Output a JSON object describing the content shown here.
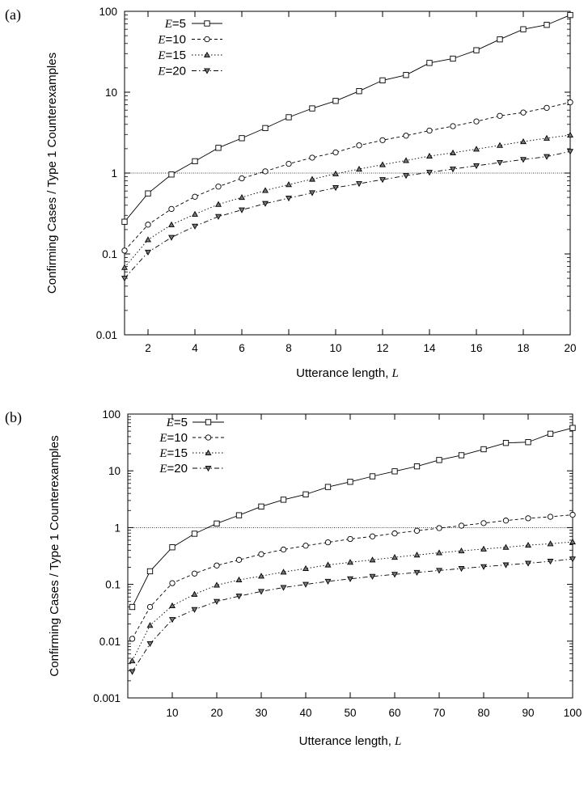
{
  "chart_data": [
    {
      "panel_label": "(a)",
      "type": "line",
      "xlabel": "Utterance length, ",
      "xlabel_var": "L",
      "ylabel": "Confirming Cases / Type 1 Counterexamples",
      "x_scale": "linear",
      "y_scale": "log",
      "xlim": [
        1,
        20
      ],
      "ylim": [
        0.01,
        100
      ],
      "x_ticks": [
        2,
        4,
        6,
        8,
        10,
        12,
        14,
        16,
        18,
        20
      ],
      "x_tick_labels": [
        "2",
        "4",
        "6",
        "8",
        "10",
        "12",
        "14",
        "16",
        "18",
        "20"
      ],
      "y_ticks": [
        0.01,
        0.1,
        1,
        10,
        100
      ],
      "y_tick_labels": [
        "0.01",
        "0.1",
        "1",
        "10",
        "100"
      ],
      "reference_line": 1,
      "legend_position": "top-left",
      "series": [
        {
          "legend_var": "E",
          "legend_value": "=5",
          "marker": "square",
          "dash": "solid",
          "x": [
            1,
            2,
            3,
            4,
            5,
            6,
            7,
            8,
            9,
            10,
            11,
            12,
            13,
            14,
            15,
            16,
            17,
            18,
            19,
            20
          ],
          "values": [
            0.25,
            0.56,
            0.96,
            1.4,
            2.05,
            2.7,
            3.6,
            4.9,
            6.3,
            7.8,
            10.3,
            14.0,
            16.3,
            23,
            26,
            33,
            45,
            60,
            68,
            90
          ]
        },
        {
          "legend_var": "E",
          "legend_value": "=10",
          "marker": "circle",
          "dash": "dashed",
          "x": [
            1,
            2,
            3,
            4,
            5,
            6,
            7,
            8,
            9,
            10,
            11,
            12,
            13,
            14,
            15,
            16,
            17,
            18,
            19,
            20
          ],
          "values": [
            0.11,
            0.23,
            0.36,
            0.51,
            0.68,
            0.86,
            1.05,
            1.3,
            1.55,
            1.8,
            2.2,
            2.55,
            2.9,
            3.35,
            3.8,
            4.35,
            5.1,
            5.6,
            6.4,
            7.5
          ]
        },
        {
          "legend_var": "E",
          "legend_value": "=15",
          "marker": "triangle-up",
          "dash": "dotted",
          "x": [
            1,
            2,
            3,
            4,
            5,
            6,
            7,
            8,
            9,
            10,
            11,
            12,
            13,
            14,
            15,
            16,
            17,
            18,
            19,
            20
          ],
          "values": [
            0.068,
            0.15,
            0.23,
            0.31,
            0.41,
            0.5,
            0.61,
            0.72,
            0.84,
            0.98,
            1.12,
            1.27,
            1.43,
            1.62,
            1.78,
            1.98,
            2.2,
            2.45,
            2.7,
            2.95
          ]
        },
        {
          "legend_var": "E",
          "legend_value": "=20",
          "marker": "triangle-down",
          "dash": "dashdot",
          "x": [
            1,
            2,
            3,
            4,
            5,
            6,
            7,
            8,
            9,
            10,
            11,
            12,
            13,
            14,
            15,
            16,
            17,
            18,
            19,
            20
          ],
          "values": [
            0.05,
            0.105,
            0.16,
            0.22,
            0.29,
            0.35,
            0.42,
            0.49,
            0.57,
            0.66,
            0.74,
            0.83,
            0.93,
            1.02,
            1.12,
            1.23,
            1.35,
            1.47,
            1.6,
            1.85
          ]
        }
      ]
    },
    {
      "panel_label": "(b)",
      "type": "line",
      "xlabel": "Utterance length, ",
      "xlabel_var": "L",
      "ylabel": "Confirming Cases / Type 1 Counterexamples",
      "x_scale": "linear",
      "y_scale": "log",
      "xlim": [
        0,
        100
      ],
      "ylim": [
        0.001,
        100
      ],
      "x_ticks": [
        10,
        20,
        30,
        40,
        50,
        60,
        70,
        80,
        90,
        100
      ],
      "x_tick_labels": [
        "10",
        "20",
        "30",
        "40",
        "50",
        "60",
        "70",
        "80",
        "90",
        "100"
      ],
      "y_ticks": [
        0.001,
        0.01,
        0.1,
        1,
        10,
        100
      ],
      "y_tick_labels": [
        "0.001",
        "0.01",
        "0.1",
        "1",
        "10",
        "100"
      ],
      "reference_line": 1,
      "legend_position": "top-left",
      "series": [
        {
          "legend_var": "E",
          "legend_value": "=5",
          "marker": "square",
          "dash": "solid",
          "x": [
            1,
            5,
            10,
            15,
            20,
            25,
            30,
            35,
            40,
            45,
            50,
            55,
            60,
            65,
            70,
            75,
            80,
            85,
            90,
            95,
            100
          ],
          "values": [
            0.04,
            0.17,
            0.45,
            0.78,
            1.18,
            1.65,
            2.35,
            3.1,
            3.85,
            5.2,
            6.4,
            8.0,
            9.8,
            12.0,
            15.5,
            18.8,
            24,
            31,
            32,
            45,
            57
          ]
        },
        {
          "legend_var": "E",
          "legend_value": "=10",
          "marker": "circle",
          "dash": "dashed",
          "x": [
            1,
            5,
            10,
            15,
            20,
            25,
            30,
            35,
            40,
            45,
            50,
            55,
            60,
            65,
            70,
            75,
            80,
            85,
            90,
            95,
            100
          ],
          "values": [
            0.011,
            0.04,
            0.105,
            0.155,
            0.215,
            0.27,
            0.34,
            0.41,
            0.48,
            0.55,
            0.63,
            0.7,
            0.79,
            0.88,
            0.98,
            1.08,
            1.2,
            1.33,
            1.46,
            1.55,
            1.68
          ]
        },
        {
          "legend_var": "E",
          "legend_value": "=15",
          "marker": "triangle-up",
          "dash": "dotted",
          "x": [
            1,
            5,
            10,
            15,
            20,
            25,
            30,
            35,
            40,
            45,
            50,
            55,
            60,
            65,
            70,
            75,
            80,
            85,
            90,
            95,
            100
          ],
          "values": [
            0.0045,
            0.019,
            0.042,
            0.067,
            0.097,
            0.12,
            0.14,
            0.165,
            0.19,
            0.22,
            0.245,
            0.27,
            0.3,
            0.33,
            0.36,
            0.39,
            0.42,
            0.45,
            0.49,
            0.52,
            0.56
          ]
        },
        {
          "legend_var": "E",
          "legend_value": "=20",
          "marker": "triangle-down",
          "dash": "dashdot",
          "x": [
            1,
            5,
            10,
            15,
            20,
            25,
            30,
            35,
            40,
            45,
            50,
            55,
            60,
            65,
            70,
            75,
            80,
            85,
            90,
            95,
            100
          ],
          "values": [
            0.0029,
            0.009,
            0.024,
            0.036,
            0.05,
            0.062,
            0.075,
            0.088,
            0.1,
            0.113,
            0.125,
            0.138,
            0.15,
            0.162,
            0.176,
            0.19,
            0.205,
            0.22,
            0.235,
            0.255,
            0.28
          ]
        }
      ]
    }
  ]
}
